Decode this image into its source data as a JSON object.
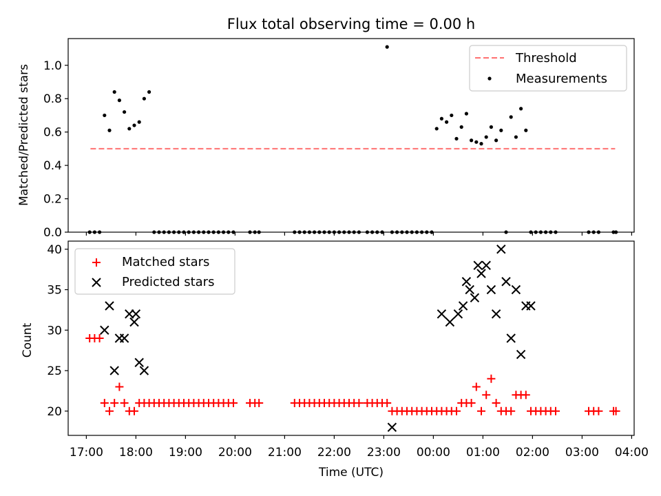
{
  "chart_data": [
    {
      "type": "scatter",
      "title": "Flux total observing time = 0.00 h",
      "xlabel": "",
      "ylabel": "Matched/Predicted stars",
      "ylim": [
        0,
        1.16
      ],
      "xlim": [
        "16:38",
        "04:03"
      ],
      "y_ticks": [
        "0.0",
        "0.2",
        "0.4",
        "0.6",
        "0.8",
        "1.0"
      ],
      "y_tick_values": [
        0,
        0.2,
        0.4,
        0.6,
        0.8,
        1.0
      ],
      "grid": false,
      "legend": {
        "position": "top-right",
        "entries": [
          "Threshold",
          "Measurements"
        ]
      },
      "colors": {
        "threshold": "#ff7070",
        "measurements": "#000000"
      },
      "threshold": {
        "name": "Threshold",
        "y": 0.5,
        "x_start": "17:05",
        "x_end": "03:40"
      },
      "series": [
        {
          "name": "Measurements",
          "x": [
            "17:04",
            "17:10",
            "17:16",
            "17:22",
            "17:28",
            "17:34",
            "17:40",
            "17:46",
            "17:52",
            "17:58",
            "18:04",
            "18:10",
            "18:16",
            "18:22",
            "18:28",
            "18:34",
            "18:40",
            "18:46",
            "18:52",
            "18:58",
            "19:04",
            "19:10",
            "19:16",
            "19:22",
            "19:28",
            "19:34",
            "19:40",
            "19:46",
            "19:52",
            "19:58",
            "20:18",
            "20:24",
            "20:29",
            "21:12",
            "21:18",
            "21:24",
            "21:30",
            "21:36",
            "21:42",
            "21:48",
            "21:54",
            "22:00",
            "22:06",
            "22:12",
            "22:18",
            "22:24",
            "22:30",
            "22:40",
            "22:46",
            "22:52",
            "22:58",
            "23:04",
            "23:10",
            "23:16",
            "23:22",
            "23:28",
            "23:34",
            "23:40",
            "23:46",
            "23:52",
            "23:58",
            "00:04",
            "00:10",
            "00:16",
            "00:22",
            "00:28",
            "00:34",
            "00:40",
            "00:46",
            "00:52",
            "00:58",
            "01:04",
            "01:10",
            "01:16",
            "01:22",
            "01:28",
            "01:34",
            "01:40",
            "01:46",
            "01:52",
            "01:58",
            "02:04",
            "02:10",
            "02:16",
            "02:22",
            "02:28",
            "03:08",
            "03:14",
            "03:20",
            "03:38",
            "03:41"
          ],
          "y": [
            0,
            0,
            0,
            0.7,
            0.61,
            0.84,
            0.79,
            0.72,
            0.62,
            0.64,
            0.66,
            0.8,
            0.84,
            0,
            0,
            0,
            0,
            0,
            0,
            0,
            0,
            0,
            0,
            0,
            0,
            0,
            0,
            0,
            0,
            0,
            0,
            0,
            0,
            0,
            0,
            0,
            0,
            0,
            0,
            0,
            0,
            0,
            0,
            0,
            0,
            0,
            0,
            0,
            0,
            0,
            0,
            1.11,
            0,
            0,
            0,
            0,
            0,
            0,
            0,
            0,
            0,
            0.62,
            0.68,
            0.66,
            0.7,
            0.56,
            0.63,
            0.71,
            0.55,
            0.54,
            0.53,
            0.57,
            0.63,
            0.55,
            0.61,
            0,
            0.69,
            0.57,
            0.74,
            0.61,
            0,
            0,
            0,
            0,
            0,
            0,
            0,
            0,
            0,
            0,
            0
          ]
        }
      ]
    },
    {
      "type": "scatter",
      "title": "",
      "xlabel": "Time (UTC)",
      "ylabel": "Count",
      "ylim": [
        17,
        41
      ],
      "xlim": [
        "16:38",
        "04:03"
      ],
      "x_ticks": [
        "17:00",
        "18:00",
        "19:00",
        "20:00",
        "21:00",
        "22:00",
        "23:00",
        "00:00",
        "01:00",
        "02:00",
        "03:00",
        "04:00"
      ],
      "y_ticks": [
        "20",
        "25",
        "30",
        "35",
        "40"
      ],
      "y_tick_values": [
        20,
        25,
        30,
        35,
        40
      ],
      "grid": false,
      "legend": {
        "position": "top-left",
        "entries": [
          "Matched stars",
          "Predicted stars"
        ]
      },
      "colors": {
        "matched": "#ff0000",
        "predicted": "#000000"
      },
      "series": [
        {
          "name": "Matched stars",
          "marker": "+",
          "x": [
            "17:04",
            "17:10",
            "17:16",
            "17:22",
            "17:28",
            "17:34",
            "17:40",
            "17:46",
            "17:52",
            "17:58",
            "18:04",
            "18:10",
            "18:16",
            "18:22",
            "18:28",
            "18:34",
            "18:40",
            "18:46",
            "18:52",
            "18:58",
            "19:04",
            "19:10",
            "19:16",
            "19:22",
            "19:28",
            "19:34",
            "19:40",
            "19:46",
            "19:52",
            "19:58",
            "20:18",
            "20:24",
            "20:29",
            "21:12",
            "21:18",
            "21:24",
            "21:30",
            "21:36",
            "21:42",
            "21:48",
            "21:54",
            "22:00",
            "22:06",
            "22:12",
            "22:18",
            "22:24",
            "22:30",
            "22:40",
            "22:46",
            "22:52",
            "22:58",
            "23:04",
            "23:10",
            "23:16",
            "23:22",
            "23:28",
            "23:34",
            "23:40",
            "23:46",
            "23:52",
            "23:58",
            "00:04",
            "00:10",
            "00:16",
            "00:22",
            "00:28",
            "00:34",
            "00:40",
            "00:46",
            "00:52",
            "00:58",
            "01:04",
            "01:10",
            "01:16",
            "01:22",
            "01:28",
            "01:34",
            "01:40",
            "01:46",
            "01:52",
            "01:58",
            "02:04",
            "02:10",
            "02:16",
            "02:22",
            "02:28",
            "03:08",
            "03:14",
            "03:20",
            "03:38",
            "03:41"
          ],
          "y": [
            29,
            29,
            29,
            21,
            20,
            21,
            23,
            21,
            20,
            20,
            21,
            21,
            21,
            21,
            21,
            21,
            21,
            21,
            21,
            21,
            21,
            21,
            21,
            21,
            21,
            21,
            21,
            21,
            21,
            21,
            21,
            21,
            21,
            21,
            21,
            21,
            21,
            21,
            21,
            21,
            21,
            21,
            21,
            21,
            21,
            21,
            21,
            21,
            21,
            21,
            21,
            21,
            20,
            20,
            20,
            20,
            20,
            20,
            20,
            20,
            20,
            20,
            20,
            20,
            20,
            20,
            21,
            21,
            21,
            23,
            20,
            22,
            24,
            21,
            20,
            20,
            20,
            22,
            22,
            22,
            20,
            20,
            20,
            20,
            20,
            20,
            20,
            20,
            20,
            20,
            20
          ]
        },
        {
          "name": "Predicted stars",
          "marker": "x",
          "x": [
            "17:22",
            "17:28",
            "17:34",
            "17:40",
            "17:46",
            "17:52",
            "17:58",
            "18:00",
            "18:04",
            "18:10",
            "23:10",
            "00:10",
            "00:20",
            "00:30",
            "00:36",
            "00:40",
            "00:44",
            "00:50",
            "00:54",
            "00:58",
            "01:04",
            "01:10",
            "01:16",
            "01:22",
            "01:28",
            "01:34",
            "01:40",
            "01:46",
            "01:52",
            "01:58"
          ],
          "y": [
            30,
            33,
            25,
            29,
            29,
            32,
            31,
            32,
            26,
            25,
            18,
            32,
            31,
            32,
            33,
            36,
            35,
            34,
            38,
            37,
            38,
            35,
            32,
            40,
            36,
            29,
            35,
            27,
            33,
            33
          ]
        }
      ]
    }
  ]
}
